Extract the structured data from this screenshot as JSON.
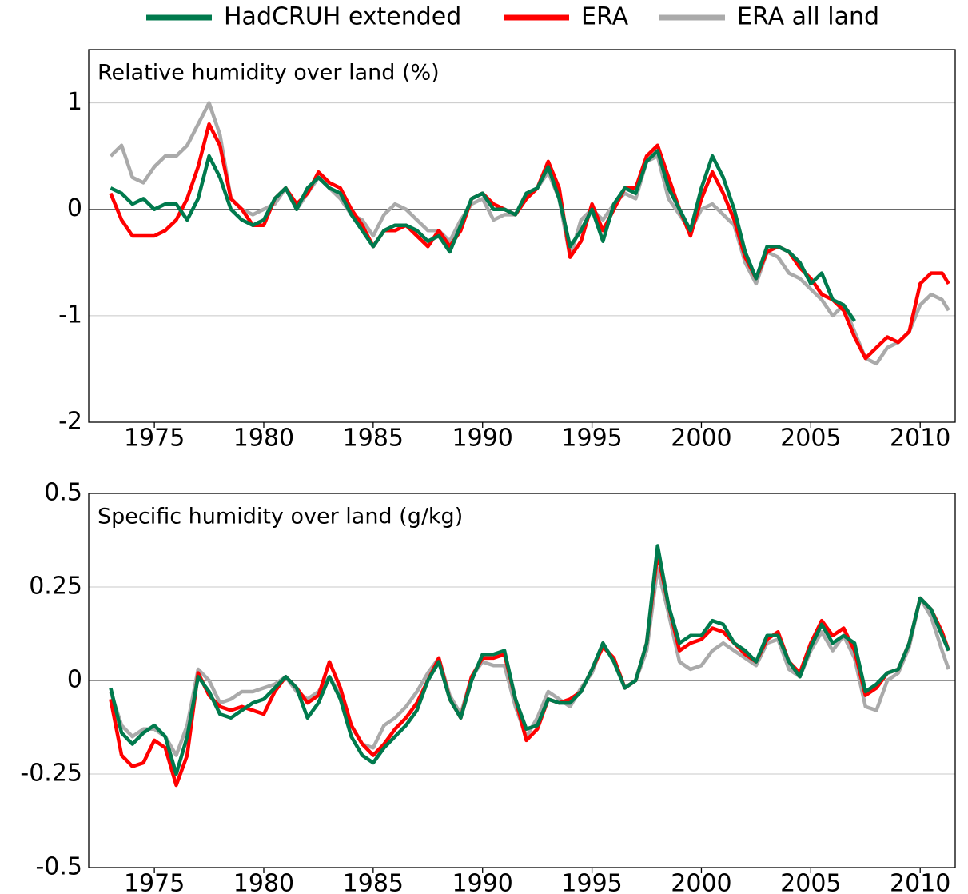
{
  "chart_data": [
    {
      "type": "line",
      "title": "Relative humidity over land (%)",
      "x": [
        1973.0,
        1973.5,
        1974.0,
        1974.5,
        1975.0,
        1975.5,
        1976.0,
        1976.5,
        1977.0,
        1977.5,
        1978.0,
        1978.5,
        1979.0,
        1979.5,
        1980.0,
        1980.5,
        1981.0,
        1981.5,
        1982.0,
        1982.5,
        1983.0,
        1983.5,
        1984.0,
        1984.5,
        1985.0,
        1985.5,
        1986.0,
        1986.5,
        1987.0,
        1987.5,
        1988.0,
        1988.5,
        1989.0,
        1989.5,
        1990.0,
        1990.5,
        1991.0,
        1991.5,
        1992.0,
        1992.5,
        1993.0,
        1993.5,
        1994.0,
        1994.5,
        1995.0,
        1995.5,
        1996.0,
        1996.5,
        1997.0,
        1997.5,
        1998.0,
        1998.5,
        1999.0,
        1999.5,
        2000.0,
        2000.5,
        2001.0,
        2001.5,
        2002.0,
        2002.5,
        2003.0,
        2003.5,
        2004.0,
        2004.5,
        2005.0,
        2005.5,
        2006.0,
        2006.5,
        2007.0,
        2007.5,
        2008.0,
        2008.5,
        2009.0,
        2009.5,
        2010.0,
        2010.5,
        2011.0,
        2011.3
      ],
      "series": [
        {
          "name": "HadCRUH extended",
          "color": "#007a4d",
          "values": [
            0.2,
            0.15,
            0.05,
            0.1,
            0.0,
            0.05,
            0.05,
            -0.1,
            0.1,
            0.5,
            0.3,
            0.0,
            -0.1,
            -0.15,
            -0.1,
            0.1,
            0.2,
            0.0,
            0.2,
            0.3,
            0.2,
            0.15,
            -0.05,
            -0.2,
            -0.35,
            -0.2,
            -0.15,
            -0.15,
            -0.2,
            -0.3,
            -0.25,
            -0.4,
            -0.15,
            0.1,
            0.15,
            0.0,
            0.0,
            -0.05,
            0.15,
            0.2,
            0.4,
            0.1,
            -0.35,
            -0.2,
            0.0,
            -0.3,
            0.05,
            0.2,
            0.15,
            0.45,
            0.55,
            0.2,
            0.0,
            -0.2,
            0.2,
            0.5,
            0.3,
            0.0,
            -0.4,
            -0.65,
            -0.35,
            -0.35,
            -0.4,
            -0.5,
            -0.7,
            -0.6,
            -0.85,
            -0.9,
            -1.05,
            null,
            null,
            null,
            null,
            null,
            null,
            null,
            null,
            null
          ]
        },
        {
          "name": "ERA",
          "color": "#ff0000",
          "values": [
            0.15,
            -0.1,
            -0.25,
            -0.25,
            -0.25,
            -0.2,
            -0.1,
            0.1,
            0.4,
            0.8,
            0.6,
            0.1,
            0.0,
            -0.15,
            -0.15,
            0.1,
            0.2,
            0.05,
            0.15,
            0.35,
            0.25,
            0.2,
            0.0,
            -0.15,
            -0.35,
            -0.2,
            -0.2,
            -0.15,
            -0.25,
            -0.35,
            -0.2,
            -0.35,
            -0.2,
            0.1,
            0.15,
            0.05,
            0.0,
            -0.05,
            0.1,
            0.2,
            0.45,
            0.2,
            -0.45,
            -0.3,
            0.05,
            -0.2,
            0.0,
            0.2,
            0.2,
            0.5,
            0.6,
            0.3,
            0.0,
            -0.25,
            0.1,
            0.35,
            0.15,
            -0.1,
            -0.45,
            -0.65,
            -0.4,
            -0.35,
            -0.4,
            -0.55,
            -0.65,
            -0.8,
            -0.85,
            -0.95,
            -1.2,
            -1.4,
            -1.3,
            -1.2,
            -1.25,
            -1.15,
            -0.7,
            -0.6,
            -0.6,
            -0.7
          ]
        },
        {
          "name": "ERA all land",
          "color": "#aaaaaa",
          "values": [
            0.5,
            0.6,
            0.3,
            0.25,
            0.4,
            0.5,
            0.5,
            0.6,
            0.8,
            1.0,
            0.7,
            0.1,
            0.0,
            -0.05,
            0.0,
            0.05,
            0.2,
            0.0,
            0.15,
            0.3,
            0.2,
            0.1,
            -0.05,
            -0.1,
            -0.25,
            -0.05,
            0.05,
            0.0,
            -0.1,
            -0.2,
            -0.2,
            -0.3,
            -0.1,
            0.05,
            0.1,
            -0.1,
            -0.05,
            -0.05,
            0.1,
            0.2,
            0.35,
            0.1,
            -0.45,
            -0.1,
            0.0,
            -0.1,
            0.05,
            0.15,
            0.1,
            0.45,
            0.5,
            0.1,
            -0.05,
            -0.2,
            0.0,
            0.05,
            -0.05,
            -0.15,
            -0.5,
            -0.7,
            -0.4,
            -0.45,
            -0.6,
            -0.65,
            -0.75,
            -0.85,
            -1.0,
            -0.9,
            -1.15,
            -1.4,
            -1.45,
            -1.3,
            -1.25,
            -1.15,
            -0.9,
            -0.8,
            -0.85,
            -0.95
          ]
        }
      ],
      "xlim": [
        1972,
        2011.6
      ],
      "xticks": [
        1975,
        1980,
        1985,
        1990,
        1995,
        2000,
        2005,
        2010
      ],
      "ylim": [
        -2,
        1.5
      ],
      "yticks": [
        -2,
        -1,
        0,
        1
      ],
      "grid": true
    },
    {
      "type": "line",
      "title": "Specific humidity over land (g/kg)",
      "x": [
        1973.0,
        1973.5,
        1974.0,
        1974.5,
        1975.0,
        1975.5,
        1976.0,
        1976.5,
        1977.0,
        1977.5,
        1978.0,
        1978.5,
        1979.0,
        1979.5,
        1980.0,
        1980.5,
        1981.0,
        1981.5,
        1982.0,
        1982.5,
        1983.0,
        1983.5,
        1984.0,
        1984.5,
        1985.0,
        1985.5,
        1986.0,
        1986.5,
        1987.0,
        1987.5,
        1988.0,
        1988.5,
        1989.0,
        1989.5,
        1990.0,
        1990.5,
        1991.0,
        1991.5,
        1992.0,
        1992.5,
        1993.0,
        1993.5,
        1994.0,
        1994.5,
        1995.0,
        1995.5,
        1996.0,
        1996.5,
        1997.0,
        1997.5,
        1998.0,
        1998.5,
        1999.0,
        1999.5,
        2000.0,
        2000.5,
        2001.0,
        2001.5,
        2002.0,
        2002.5,
        2003.0,
        2003.5,
        2004.0,
        2004.5,
        2005.0,
        2005.5,
        2006.0,
        2006.5,
        2007.0,
        2007.5,
        2008.0,
        2008.5,
        2009.0,
        2009.5,
        2010.0,
        2010.5,
        2011.0,
        2011.3
      ],
      "series": [
        {
          "color": "#007a4d",
          "values": [
            -0.02,
            -0.14,
            -0.17,
            -0.14,
            -0.12,
            -0.15,
            -0.25,
            -0.15,
            0.01,
            -0.03,
            -0.09,
            -0.1,
            -0.08,
            -0.06,
            -0.05,
            -0.02,
            0.01,
            -0.02,
            -0.1,
            -0.06,
            0.01,
            -0.05,
            -0.15,
            -0.2,
            -0.22,
            -0.18,
            -0.15,
            -0.12,
            -0.08,
            0.0,
            0.05,
            -0.05,
            -0.1,
            0.0,
            0.07,
            0.07,
            0.08,
            -0.05,
            -0.13,
            -0.12,
            -0.05,
            -0.06,
            -0.06,
            -0.03,
            0.03,
            0.1,
            0.05,
            -0.02,
            0.0,
            0.1,
            0.36,
            0.2,
            0.1,
            0.12,
            0.12,
            0.16,
            0.15,
            0.1,
            0.08,
            0.05,
            0.12,
            0.12,
            0.05,
            0.01,
            0.09,
            0.15,
            0.1,
            0.12,
            0.1,
            -0.03,
            -0.01,
            0.02,
            0.03,
            0.1,
            0.22,
            0.19,
            0.12,
            0.08
          ]
        },
        {
          "color": "#ff0000",
          "values": [
            -0.05,
            -0.2,
            -0.23,
            -0.22,
            -0.16,
            -0.18,
            -0.28,
            -0.2,
            0.02,
            -0.04,
            -0.07,
            -0.08,
            -0.07,
            -0.08,
            -0.09,
            -0.03,
            0.01,
            -0.02,
            -0.06,
            -0.04,
            0.05,
            -0.02,
            -0.12,
            -0.17,
            -0.2,
            -0.17,
            -0.13,
            -0.1,
            -0.06,
            0.0,
            0.06,
            -0.05,
            -0.1,
            0.01,
            0.06,
            0.06,
            0.07,
            -0.05,
            -0.16,
            -0.13,
            -0.05,
            -0.06,
            -0.05,
            -0.03,
            0.03,
            0.09,
            0.06,
            -0.02,
            0.0,
            0.1,
            0.34,
            0.2,
            0.08,
            0.1,
            0.11,
            0.14,
            0.13,
            0.1,
            0.07,
            0.05,
            0.11,
            0.13,
            0.05,
            0.02,
            0.1,
            0.16,
            0.12,
            0.14,
            0.08,
            -0.04,
            -0.02,
            0.02,
            0.03,
            0.1,
            0.22,
            0.19,
            0.13,
            0.08
          ]
        },
        {
          "color": "#aaaaaa",
          "values": [
            -0.03,
            -0.12,
            -0.15,
            -0.13,
            -0.13,
            -0.15,
            -0.2,
            -0.12,
            0.03,
            0.0,
            -0.06,
            -0.05,
            -0.03,
            -0.03,
            -0.02,
            -0.01,
            0.01,
            -0.03,
            -0.05,
            -0.03,
            0.01,
            -0.04,
            -0.12,
            -0.17,
            -0.18,
            -0.12,
            -0.1,
            -0.07,
            -0.03,
            0.02,
            0.06,
            -0.04,
            -0.09,
            0.01,
            0.05,
            0.04,
            0.04,
            -0.07,
            -0.15,
            -0.1,
            -0.03,
            -0.05,
            -0.07,
            -0.02,
            0.02,
            0.1,
            0.05,
            -0.02,
            0.0,
            0.08,
            0.3,
            0.18,
            0.05,
            0.03,
            0.04,
            0.08,
            0.1,
            0.08,
            0.06,
            0.04,
            0.1,
            0.11,
            0.03,
            0.01,
            0.08,
            0.13,
            0.08,
            0.12,
            0.06,
            -0.07,
            -0.08,
            0.0,
            0.02,
            0.09,
            0.22,
            0.17,
            0.08,
            0.03
          ]
        }
      ],
      "xlim": [
        1972,
        2011.6
      ],
      "xticks": [
        1975,
        1980,
        1985,
        1990,
        1995,
        2000,
        2005,
        2010
      ],
      "ylim": [
        -0.5,
        0.5
      ],
      "yticks": [
        -0.5,
        -0.25,
        0,
        0.25,
        0.5
      ],
      "grid": true
    }
  ]
}
